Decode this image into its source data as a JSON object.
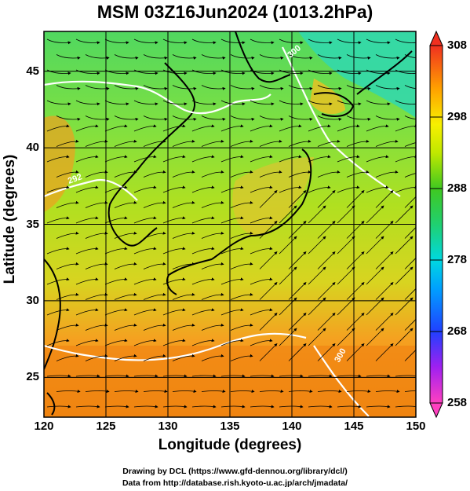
{
  "title": "MSM 03Z16Jun2024 (1013.2hPa)",
  "xlabel": "Longitude (degrees)",
  "ylabel": "Latitude  (degrees)",
  "credits": {
    "line1": "Drawing by DCL (https://www.gfd-dennou.org/library/dcl/)",
    "line2": "Data from http://database.rish.kyoto-u.ac.jp/arch/jmadata/"
  },
  "chart_data": {
    "type": "heatmap",
    "title": "MSM 03Z16Jun2024 (1013.2hPa)",
    "xlabel": "Longitude (degrees)",
    "ylabel": "Latitude  (degrees)",
    "xlim": [
      120,
      150
    ],
    "ylim": [
      22.4,
      47.6
    ],
    "x_ticks": [
      120,
      125,
      130,
      135,
      140,
      145,
      150
    ],
    "y_ticks": [
      25,
      30,
      35,
      40,
      45
    ],
    "grid": true,
    "colorbar": {
      "min": 258,
      "max": 308,
      "ticks": [
        258,
        268,
        278,
        288,
        298,
        308
      ],
      "colors": [
        "#ff40c0",
        "#a020f0",
        "#2040ff",
        "#00c8ff",
        "#20d090",
        "#30c030",
        "#a0e000",
        "#f0f000",
        "#ffb000",
        "#ff6020",
        "#f03020"
      ]
    },
    "contour_labels": [
      "300",
      "300",
      "292"
    ]
  }
}
